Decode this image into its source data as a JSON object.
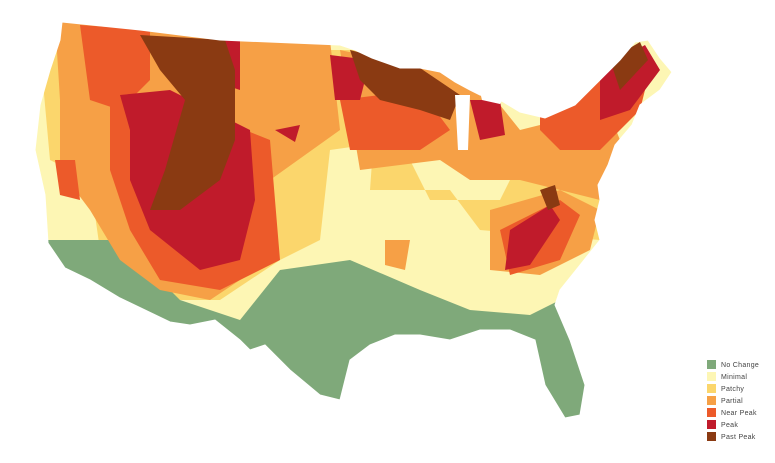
{
  "legend": {
    "items": [
      {
        "label": "No Change",
        "color": "#7fa97a"
      },
      {
        "label": "Minimal",
        "color": "#fdf6b4"
      },
      {
        "label": "Patchy",
        "color": "#fbd66c"
      },
      {
        "label": "Partial",
        "color": "#f6a046"
      },
      {
        "label": "Near Peak",
        "color": "#ec5a2a"
      },
      {
        "label": "Peak",
        "color": "#c01b2b"
      },
      {
        "label": "Past Peak",
        "color": "#8a3a12"
      }
    ]
  }
}
